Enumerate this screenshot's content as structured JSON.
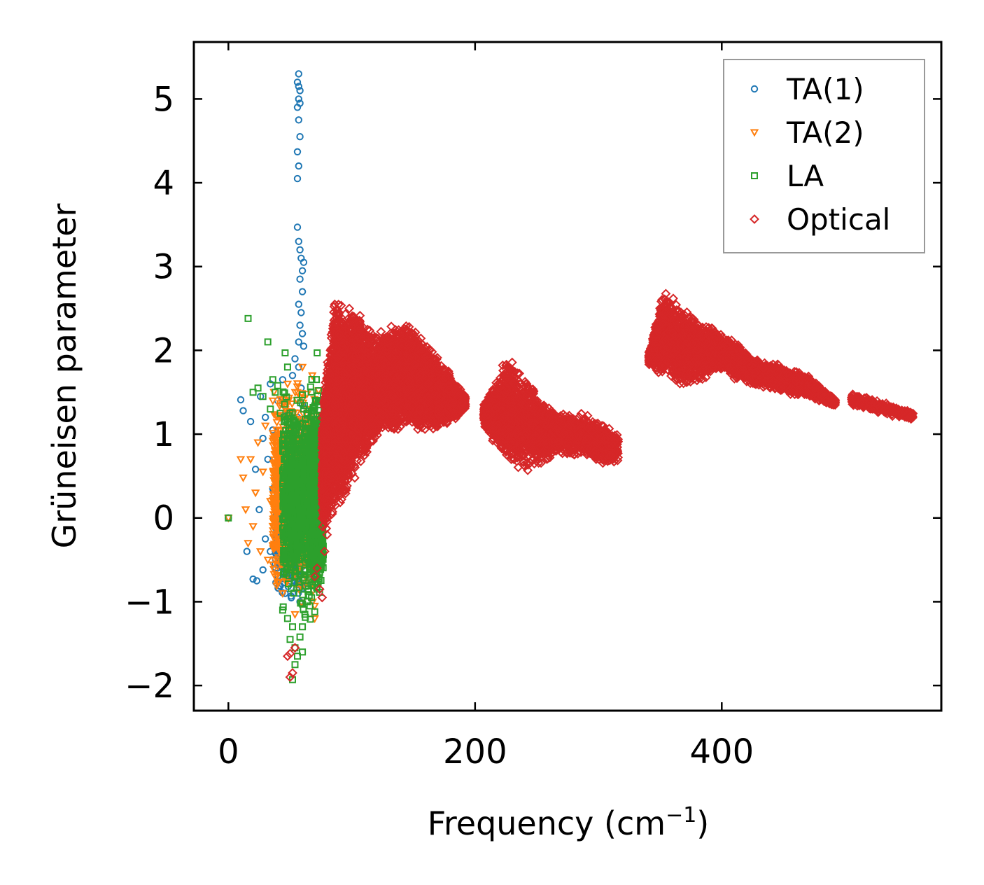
{
  "chart_data": {
    "type": "scatter",
    "title": "",
    "xlabel": "Frequency (cm",
    "xlabel_sup": "−1",
    "xlabel_close": ")",
    "ylabel": "Grüneisen parameter",
    "xlim": [
      -28,
      578
    ],
    "ylim": [
      -2.3,
      5.68
    ],
    "xticks": [
      0,
      200,
      400
    ],
    "xtick_labels": [
      "0",
      "200",
      "400"
    ],
    "yticks": [
      -2,
      -1,
      0,
      1,
      2,
      3,
      4,
      5
    ],
    "ytick_labels": [
      "−2",
      "−1",
      "0",
      "1",
      "2",
      "3",
      "4",
      "5"
    ],
    "grid": false,
    "legend_position": "top-right",
    "series": [
      {
        "name": "TA(1)",
        "marker": "circle",
        "color": "#1f77b4",
        "points": [
          [
            0,
            0
          ],
          [
            10,
            1.41
          ],
          [
            12,
            1.28
          ],
          [
            15,
            -0.4
          ],
          [
            18,
            1.15
          ],
          [
            20,
            -0.73
          ],
          [
            22,
            0.58
          ],
          [
            23,
            -0.75
          ],
          [
            25,
            0.1
          ],
          [
            26,
            1.45
          ],
          [
            28,
            0.95
          ],
          [
            28,
            -0.62
          ],
          [
            30,
            1.2
          ],
          [
            30,
            -0.25
          ],
          [
            32,
            0.7
          ],
          [
            34,
            1.6
          ],
          [
            34,
            -0.4
          ],
          [
            36,
            0.35
          ],
          [
            36,
            1.05
          ],
          [
            38,
            -0.55
          ],
          [
            40,
            0.85
          ],
          [
            40,
            1.4
          ],
          [
            42,
            -0.2
          ],
          [
            44,
            0.4
          ],
          [
            44,
            1.65
          ],
          [
            46,
            0.0
          ],
          [
            46,
            -0.9
          ],
          [
            48,
            1.25
          ],
          [
            48,
            0.75
          ],
          [
            50,
            -0.4
          ],
          [
            50,
            0.2
          ],
          [
            52,
            1.7
          ],
          [
            52,
            -0.7
          ],
          [
            54,
            0.95
          ],
          [
            54,
            1.9
          ],
          [
            55,
            -0.1
          ],
          [
            56,
            0.5
          ],
          [
            56,
            1.2
          ],
          [
            57,
            2.1
          ],
          [
            58,
            -0.3
          ],
          [
            56,
            4.05
          ],
          [
            57,
            4.2
          ],
          [
            56,
            4.37
          ],
          [
            58,
            4.55
          ],
          [
            57,
            4.75
          ],
          [
            56,
            4.9
          ],
          [
            57,
            5.0
          ],
          [
            58,
            5.1
          ],
          [
            56,
            5.2
          ],
          [
            57,
            5.3
          ],
          [
            58,
            4.95
          ],
          [
            57,
            5.15
          ],
          [
            56,
            3.47
          ],
          [
            57,
            3.3
          ],
          [
            58,
            3.2
          ],
          [
            59,
            3.1
          ],
          [
            60,
            2.95
          ],
          [
            61,
            3.05
          ],
          [
            58,
            2.85
          ],
          [
            60,
            2.7
          ],
          [
            57,
            2.55
          ],
          [
            59,
            2.45
          ],
          [
            58,
            2.3
          ],
          [
            60,
            2.2
          ],
          [
            61,
            2.05
          ],
          [
            57,
            1.8
          ],
          [
            59,
            1.55
          ],
          [
            60,
            1.35
          ],
          [
            58,
            1.05
          ],
          [
            59,
            0.8
          ],
          [
            60,
            0.3
          ],
          [
            61,
            -0.5
          ],
          [
            59,
            -0.8
          ],
          [
            58,
            -1.0
          ]
        ],
        "clusters": [
          {
            "x": [
              38,
              62
            ],
            "y": [
              -1.1,
              1.0
            ],
            "n": 520
          },
          {
            "x": [
              40,
              62
            ],
            "y": [
              -0.9,
              0.4
            ],
            "n": 280
          }
        ]
      },
      {
        "name": "TA(2)",
        "marker": "triangle-down",
        "color": "#ff7f0e",
        "points": [
          [
            0,
            0
          ],
          [
            10,
            0.7
          ],
          [
            12,
            0.48
          ],
          [
            14,
            0.1
          ],
          [
            16,
            -0.3
          ],
          [
            18,
            0.7
          ],
          [
            20,
            -0.1
          ],
          [
            22,
            0.3
          ],
          [
            24,
            0.9
          ],
          [
            26,
            -0.4
          ],
          [
            28,
            0.55
          ],
          [
            30,
            1.1
          ],
          [
            32,
            -0.5
          ],
          [
            34,
            0.2
          ],
          [
            36,
            1.4
          ],
          [
            38,
            -0.7
          ],
          [
            40,
            0.7
          ],
          [
            42,
            1.2
          ],
          [
            44,
            -0.9
          ],
          [
            46,
            0.5
          ],
          [
            48,
            1.6
          ],
          [
            50,
            -0.35
          ],
          [
            52,
            1.0
          ],
          [
            54,
            -1.15
          ],
          [
            56,
            1.5
          ],
          [
            58,
            0.2
          ],
          [
            60,
            1.8
          ],
          [
            62,
            -0.8
          ],
          [
            64,
            1.3
          ],
          [
            66,
            0.0
          ],
          [
            68,
            1.7
          ],
          [
            70,
            -1.05
          ],
          [
            70,
            -1.2
          ]
        ],
        "clusters": [
          {
            "x": [
              36,
              74
            ],
            "y": [
              -1.2,
              1.8
            ],
            "n": 1100
          },
          {
            "x": [
              48,
              74
            ],
            "y": [
              -0.6,
              1.2
            ],
            "n": 500
          }
        ]
      },
      {
        "name": "LA",
        "marker": "square",
        "color": "#2ca02c",
        "points": [
          [
            0,
            0
          ],
          [
            16,
            2.38
          ],
          [
            20,
            1.5
          ],
          [
            24,
            1.55
          ],
          [
            28,
            1.45
          ],
          [
            32,
            2.1
          ],
          [
            34,
            1.3
          ],
          [
            36,
            1.65
          ],
          [
            38,
            1.5
          ],
          [
            40,
            1.58
          ],
          [
            42,
            1.25
          ],
          [
            46,
            1.97
          ],
          [
            48,
            1.8
          ],
          [
            50,
            -1.45
          ],
          [
            52,
            -1.3
          ],
          [
            54,
            -1.55
          ],
          [
            56,
            -1.65
          ],
          [
            58,
            -1.42
          ],
          [
            60,
            -1.3
          ],
          [
            60,
            -1.6
          ],
          [
            62,
            -1.15
          ],
          [
            52,
            -1.93
          ],
          [
            54,
            -1.75
          ],
          [
            44,
            -1.1
          ],
          [
            48,
            -1.2
          ],
          [
            64,
            -1.0
          ],
          [
            66,
            -1.05
          ],
          [
            70,
            -1.12
          ],
          [
            72,
            1.97
          ]
        ],
        "clusters": [
          {
            "x": [
              44,
              76
            ],
            "y": [
              -1.3,
              1.7
            ],
            "n": 1100
          },
          {
            "x": [
              66,
              77
            ],
            "y": [
              -1.0,
              1.7
            ],
            "n": 900
          }
        ]
      },
      {
        "name": "Optical",
        "marker": "diamond",
        "color": "#d62728",
        "points": [
          [
            48,
            -1.65
          ],
          [
            50,
            -1.62
          ],
          [
            50,
            -1.9
          ],
          [
            52,
            -1.85
          ],
          [
            54,
            -1.55
          ],
          [
            70,
            -0.7
          ],
          [
            72,
            -0.6
          ],
          [
            74,
            -0.85
          ],
          [
            76,
            -0.95
          ],
          [
            78,
            -0.4
          ],
          [
            80,
            -0.2
          ]
        ],
        "bands": [
          {
            "x0": 76,
            "x1": 86,
            "top0": 1.3,
            "top1": 2.7,
            "bot0": -0.2,
            "bot1": 0.0,
            "n": 1000
          },
          {
            "x0": 86,
            "x1": 100,
            "top0": 2.7,
            "top1": 2.55,
            "bot0": 0.0,
            "bot1": 0.4,
            "n": 1200
          },
          {
            "x0": 100,
            "x1": 120,
            "top0": 2.55,
            "top1": 2.2,
            "bot0": 0.4,
            "bot1": 0.95,
            "n": 1300
          },
          {
            "x0": 120,
            "x1": 145,
            "top0": 2.2,
            "top1": 2.35,
            "bot0": 0.95,
            "bot1": 1.1,
            "n": 1300
          },
          {
            "x0": 145,
            "x1": 170,
            "top0": 2.35,
            "top1": 1.95,
            "bot0": 1.1,
            "bot1": 1.0,
            "n": 1200
          },
          {
            "x0": 170,
            "x1": 192,
            "top0": 1.95,
            "top1": 1.45,
            "bot0": 1.0,
            "bot1": 1.3,
            "n": 700
          },
          {
            "x0": 207,
            "x1": 225,
            "top0": 1.35,
            "top1": 1.95,
            "bot0": 1.1,
            "bot1": 0.65,
            "n": 500
          },
          {
            "x0": 225,
            "x1": 240,
            "top0": 1.95,
            "top1": 1.7,
            "bot0": 0.65,
            "bot1": 0.55,
            "n": 500
          },
          {
            "x0": 240,
            "x1": 262,
            "top0": 1.7,
            "top1": 1.3,
            "bot0": 0.55,
            "bot1": 0.7,
            "n": 500
          },
          {
            "x0": 262,
            "x1": 290,
            "top0": 1.3,
            "top1": 1.25,
            "bot0": 0.7,
            "bot1": 0.75,
            "n": 400
          },
          {
            "x0": 290,
            "x1": 316,
            "top0": 1.25,
            "top1": 1.0,
            "bot0": 0.65,
            "bot1": 0.65,
            "n": 400
          },
          {
            "x0": 341,
            "x1": 352,
            "top0": 1.95,
            "top1": 2.7,
            "bot0": 1.85,
            "bot1": 1.7,
            "n": 400
          },
          {
            "x0": 352,
            "x1": 370,
            "top0": 2.7,
            "top1": 2.5,
            "bot0": 1.7,
            "bot1": 1.55,
            "n": 600
          },
          {
            "x0": 370,
            "x1": 400,
            "top0": 2.5,
            "top1": 2.2,
            "bot0": 1.55,
            "bot1": 1.75,
            "n": 700
          },
          {
            "x0": 400,
            "x1": 430,
            "top0": 2.2,
            "top1": 1.9,
            "bot0": 1.75,
            "bot1": 1.55,
            "n": 600
          },
          {
            "x0": 430,
            "x1": 470,
            "top0": 1.9,
            "top1": 1.7,
            "bot0": 1.55,
            "bot1": 1.45,
            "n": 700
          },
          {
            "x0": 470,
            "x1": 492,
            "top0": 1.7,
            "top1": 1.4,
            "bot0": 1.45,
            "bot1": 1.35,
            "n": 300
          },
          {
            "x0": 505,
            "x1": 555,
            "top0": 1.48,
            "top1": 1.25,
            "bot0": 1.35,
            "bot1": 1.18,
            "n": 350
          }
        ]
      }
    ]
  }
}
